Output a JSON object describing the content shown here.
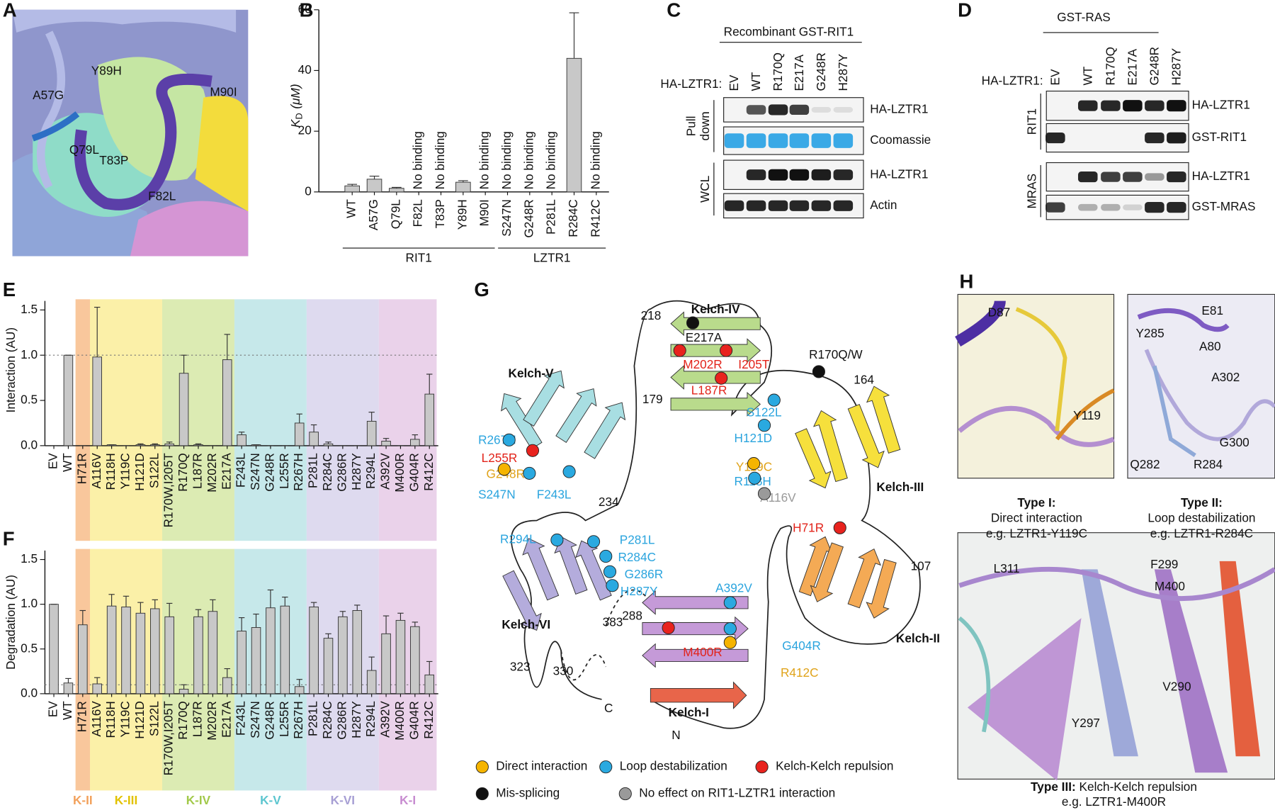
{
  "chart_data": [
    {
      "panel": "B",
      "type": "bar",
      "y_label": {
        "symbol": "K",
        "subscript": "D",
        "unit": "(μM)"
      },
      "categories": [
        "WT",
        "A57G",
        "Q79L",
        "F82L",
        "T83P",
        "Y89H",
        "M90I",
        "S247N",
        "G248R",
        "P281L",
        "R284C",
        "R412C"
      ],
      "values": [
        2,
        4.2,
        1.2,
        null,
        null,
        3.2,
        null,
        null,
        null,
        null,
        44,
        null
      ],
      "errors": [
        0.5,
        1,
        0.3,
        null,
        null,
        0.5,
        null,
        null,
        null,
        null,
        15,
        null
      ],
      "annotations": [
        null,
        null,
        null,
        "No binding",
        "No binding",
        null,
        "No binding",
        "No binding",
        "No binding",
        "No binding",
        null,
        "No binding"
      ],
      "groups": [
        {
          "name": "RIT1",
          "count": 7
        },
        {
          "name": "LZTR1",
          "count": 5
        }
      ],
      "color": "#c8c8c8",
      "ylim": [
        0,
        60
      ],
      "yticks": [
        0,
        20,
        40,
        60
      ]
    },
    {
      "panel": "E",
      "type": "bar",
      "y_label": "Interaction (AU)",
      "categories": [
        "EV",
        "WT",
        "H71R",
        "A116V",
        "R118H",
        "Y119C",
        "H121D",
        "S122L",
        "R170W,I205T",
        "R170Q",
        "L187R",
        "M202R",
        "E217A",
        "F243L",
        "S247N",
        "G248R",
        "L255R",
        "R267H",
        "P281L",
        "R284C",
        "G286R",
        "H287Y",
        "R294L",
        "A392V",
        "M400R",
        "G404R",
        "R412C"
      ],
      "values": [
        0,
        1,
        0,
        0.98,
        0.01,
        0,
        0.01,
        0.01,
        0.02,
        0.8,
        0.01,
        0,
        0.95,
        0.12,
        0.01,
        0,
        0,
        0.25,
        0.15,
        0.02,
        0,
        0,
        0.27,
        0.05,
        0,
        0.07,
        0.57
      ],
      "errors": [
        0,
        0,
        0,
        0.55,
        0,
        0,
        0.01,
        0.01,
        0.02,
        0.2,
        0.01,
        0,
        0.28,
        0.03,
        0,
        0,
        0,
        0.1,
        0.08,
        0.02,
        0,
        0,
        0.1,
        0.03,
        0,
        0.05,
        0.22
      ],
      "color": "#c8c8c8",
      "ylim": [
        0,
        1.6
      ],
      "yticks": [
        {
          "value": 0,
          "label": "0.0"
        },
        0.5,
        {
          "value": 1,
          "label": "1.0"
        },
        1.5
      ],
      "reference_line": 1
    },
    {
      "panel": "F",
      "type": "bar",
      "y_label": "Degradation (AU)",
      "categories": [
        "EV",
        "WT",
        "H71R",
        "A116V",
        "R118H",
        "Y119C",
        "H121D",
        "S122L",
        "R170W,I205T",
        "R170Q",
        "L187R",
        "M202R",
        "E217A",
        "F243L",
        "S247N",
        "G248R",
        "L255R",
        "R267H",
        "P281L",
        "R284C",
        "G286R",
        "H287Y",
        "R294L",
        "A392V",
        "M400R",
        "G404R",
        "R412C"
      ],
      "values": [
        1,
        0.12,
        0.77,
        0.11,
        0.98,
        0.97,
        0.9,
        0.95,
        0.86,
        0.05,
        0.86,
        0.92,
        0.18,
        0.7,
        0.74,
        0.96,
        0.98,
        0.08,
        0.97,
        0.62,
        0.86,
        0.93,
        0.26,
        0.67,
        0.82,
        0.75,
        0.21
      ],
      "errors": [
        0,
        0.05,
        0.16,
        0.07,
        0.13,
        0.12,
        0.12,
        0.1,
        0.15,
        0.05,
        0.08,
        0.13,
        0.1,
        0.15,
        0.15,
        0.2,
        0.1,
        0.08,
        0.05,
        0.05,
        0.06,
        0.06,
        0.15,
        0.2,
        0.08,
        0.05,
        0.15
      ],
      "color": "#c8c8c8",
      "ylim": [
        0,
        1.6
      ],
      "yticks": [
        {
          "value": 0,
          "label": "0.0"
        },
        0.5,
        {
          "value": 1,
          "label": "1.0"
        },
        1.5
      ],
      "reference_line": 0.1,
      "domains": [
        {
          "name": "K-II",
          "band": "#f9c79c",
          "color": "#f2a15c",
          "count": 1
        },
        {
          "name": "K-III",
          "band": "#fbf0a8",
          "color": "#e2c200",
          "count": 5
        },
        {
          "name": "K-IV",
          "band": "#dcebb3",
          "color": "#a2c94a",
          "count": 5
        },
        {
          "name": "K-V",
          "band": "#c6e8ea",
          "color": "#5cc6cf",
          "count": 5
        },
        {
          "name": "K-VI",
          "band": "#dedaef",
          "color": "#a79fd4",
          "count": 5
        },
        {
          "name": "K-I",
          "band": "#ead2ea",
          "color": "#c78bd0",
          "count": 4
        }
      ]
    }
  ],
  "panels": {
    "A": {
      "letter": "A",
      "labels": [
        "A57G",
        "Y89H",
        "M90I",
        "Q79L",
        "T83P",
        "F82L"
      ]
    },
    "C": {
      "letter": "C",
      "header": "Recombinant GST-RIT1",
      "row_label": "HA-LZTR1:",
      "lanes": [
        "EV",
        "WT",
        "R170Q",
        "E217A",
        "G248R",
        "H287Y"
      ],
      "blots": [
        "HA-LZTR1",
        "Coomassie",
        "HA-LZTR1",
        "Actin"
      ],
      "groups": [
        [
          "Pull",
          "down"
        ],
        [
          "WCL"
        ]
      ]
    },
    "D": {
      "letter": "D",
      "header": "GST-RAS",
      "row_label": "HA-LZTR1:",
      "lanes": [
        "EV",
        "WT",
        "R170Q",
        "E217A",
        "G248R",
        "H287Y"
      ],
      "blots": [
        "HA-LZTR1",
        "GST-RIT1",
        "HA-LZTR1",
        "GST-MRAS"
      ],
      "groups": [
        [
          "RIT1"
        ],
        [
          "MRAS"
        ]
      ]
    },
    "G": {
      "letter": "G",
      "kelch": [
        "Kelch-I",
        "Kelch-II",
        "Kelch-III",
        "Kelch-IV",
        "Kelch-V",
        "Kelch-VI"
      ],
      "numbers": [
        "218",
        "179",
        "164",
        "107",
        "234",
        "288",
        "323",
        "330",
        "383",
        "C",
        "N"
      ],
      "mutations": [
        {
          "text": "E217A",
          "color": "#111111"
        },
        {
          "text": "M202R",
          "color": "#e2231a"
        },
        {
          "text": "I205T",
          "color": "#e2231a"
        },
        {
          "text": "L187R",
          "color": "#e2231a"
        },
        {
          "text": "R170Q/W",
          "color": "#111111"
        },
        {
          "text": "S122L",
          "color": "#2aa4de"
        },
        {
          "text": "H121D",
          "color": "#2aa4de"
        },
        {
          "text": "Y119C",
          "color": "#e0a31a"
        },
        {
          "text": "R118H",
          "color": "#2aa4de"
        },
        {
          "text": "A116V",
          "color": "#9a9a9a"
        },
        {
          "text": "R267H",
          "color": "#2aa4de"
        },
        {
          "text": "L255R",
          "color": "#e2231a"
        },
        {
          "text": "G248R",
          "color": "#e0a31a"
        },
        {
          "text": "S247N",
          "color": "#2aa4de"
        },
        {
          "text": "F243L",
          "color": "#2aa4de"
        },
        {
          "text": "R294L",
          "color": "#2aa4de"
        },
        {
          "text": "P281L",
          "color": "#2aa4de"
        },
        {
          "text": "R284C",
          "color": "#2aa4de"
        },
        {
          "text": "G286R",
          "color": "#2aa4de"
        },
        {
          "text": "H287Y",
          "color": "#2aa4de"
        },
        {
          "text": "H71R",
          "color": "#e2231a"
        },
        {
          "text": "A392V",
          "color": "#2aa4de"
        },
        {
          "text": "M400R",
          "color": "#e2231a"
        },
        {
          "text": "G404R",
          "color": "#2aa4de"
        },
        {
          "text": "R412C",
          "color": "#e0a31a"
        }
      ],
      "legend": [
        {
          "label": "Direct interaction",
          "color": "#f5b400"
        },
        {
          "label": "Loop destabilization",
          "color": "#2aa9e0"
        },
        {
          "label": "Kelch-Kelch repulsion",
          "color": "#e8231e"
        },
        {
          "label": "Mis-splicing",
          "color": "#111111"
        },
        {
          "label": "No effect on RIT1-LZTR1 interaction",
          "color": "#9a9a9a"
        }
      ]
    },
    "H": {
      "letter": "H",
      "residues": [
        "D87",
        "Y119",
        "E81",
        "Y285",
        "A80",
        "A302",
        "G300",
        "Q282",
        "R284",
        "L311",
        "F299",
        "M400",
        "V290",
        "Y297"
      ],
      "captions": [
        {
          "heading": "Type I:",
          "title": "Direct interaction",
          "example": "e.g. LZTR1-Y119C"
        },
        {
          "heading": "Type II:",
          "title": "Loop destabilization",
          "example": "e.g. LZTR1-R284C"
        },
        {
          "heading": "Type III:",
          "title": " Kelch-Kelch repulsion",
          "example": "e.g. LZTR1-M400R"
        }
      ]
    }
  }
}
